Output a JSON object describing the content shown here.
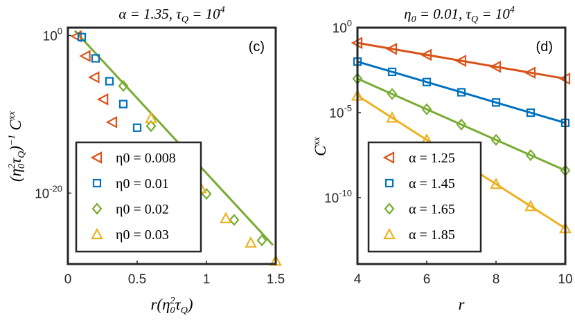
{
  "colors": {
    "series": [
      "#d95319",
      "#0072bd",
      "#77ac30",
      "#edb120"
    ],
    "axis": "#262626"
  },
  "chart_data": [
    {
      "type": "scatter",
      "panel_label": "(c)",
      "title": "α = 1.35, τ_Q = 10^4",
      "xlabel": "r(η0²τQ)",
      "ylabel": "(η0²τQ)⁻¹ Cˣˣ",
      "xlim": [
        0,
        1.5
      ],
      "ylim_log10": [
        -29,
        1
      ],
      "xticks": [
        "0",
        "0.5",
        "1",
        "1.5"
      ],
      "yticks": [
        {
          "label": "10",
          "exp": "0",
          "log10": 0
        },
        {
          "label": "10",
          "exp": "-20",
          "log10": -20
        }
      ],
      "fit_line_log10": [
        [
          0.05,
          0.6
        ],
        [
          1.48,
          -26.6
        ]
      ],
      "legend": {
        "position": "bottom-left",
        "entries": [
          "η0 = 0.008",
          "η0 = 0.01",
          "η0 = 0.02",
          "η0 = 0.03"
        ]
      },
      "series": [
        {
          "name": "η0 = 0.008",
          "marker": "triangle-left",
          "x": [
            0.064,
            0.128,
            0.192,
            0.256,
            0.32
          ],
          "y_log10": [
            -0.1,
            -2.6,
            -5.3,
            -8.1,
            -11.0
          ]
        },
        {
          "name": "η0 = 0.01",
          "marker": "square",
          "x": [
            0.1,
            0.2,
            0.3,
            0.4,
            0.5,
            0.6
          ],
          "y_log10": [
            -0.2,
            -2.9,
            -5.8,
            -8.7,
            -11.7,
            -14.6
          ]
        },
        {
          "name": "η0 = 0.02",
          "marker": "diamond",
          "x": [
            0.4,
            0.6,
            0.8,
            1.0,
            1.2,
            1.4
          ],
          "y_log10": [
            -6.4,
            -11.5,
            -16.2,
            -20.1,
            -23.4,
            -26.0
          ]
        },
        {
          "name": "η0 = 0.03",
          "marker": "triangle-up",
          "x": [
            0.6,
            0.78,
            0.96,
            1.14,
            1.32,
            1.5
          ],
          "y_log10": [
            -10.5,
            -15.0,
            -19.4,
            -23.2,
            -26.3,
            -28.6
          ]
        }
      ]
    },
    {
      "type": "line",
      "panel_label": "(d)",
      "title": "η0 = 0.01, τ_Q = 10^4",
      "xlabel": "r",
      "ylabel": "Cˣˣ",
      "xlim": [
        4,
        10
      ],
      "ylim_log10": [
        -13.9,
        0
      ],
      "xticks": [
        "4",
        "6",
        "8",
        "10"
      ],
      "yticks": [
        {
          "label": "10",
          "exp": "0",
          "log10": 0
        },
        {
          "label": "10",
          "exp": "-5",
          "log10": -5
        },
        {
          "label": "10",
          "exp": "-10",
          "log10": -10
        }
      ],
      "legend": {
        "position": "bottom-left",
        "entries": [
          "α = 1.25",
          "α = 1.45",
          "α = 1.65",
          "α = 1.85"
        ]
      },
      "x": [
        4,
        5,
        6,
        7,
        8,
        9,
        10
      ],
      "series": [
        {
          "name": "α = 1.25",
          "marker": "triangle-left",
          "y_log10": [
            -0.9,
            -1.25,
            -1.6,
            -1.95,
            -2.3,
            -2.65,
            -3.0
          ]
        },
        {
          "name": "α = 1.45",
          "marker": "square",
          "y_log10": [
            -2.0,
            -2.6,
            -3.2,
            -3.8,
            -4.4,
            -5.0,
            -5.6
          ]
        },
        {
          "name": "α = 1.65",
          "marker": "diamond",
          "y_log10": [
            -3.0,
            -3.9,
            -4.8,
            -5.7,
            -6.6,
            -7.5,
            -8.4
          ]
        },
        {
          "name": "α = 1.85",
          "marker": "triangle-up",
          "y_log10": [
            -4.0,
            -5.3,
            -6.6,
            -7.9,
            -9.2,
            -10.5,
            -11.8
          ]
        }
      ]
    }
  ]
}
